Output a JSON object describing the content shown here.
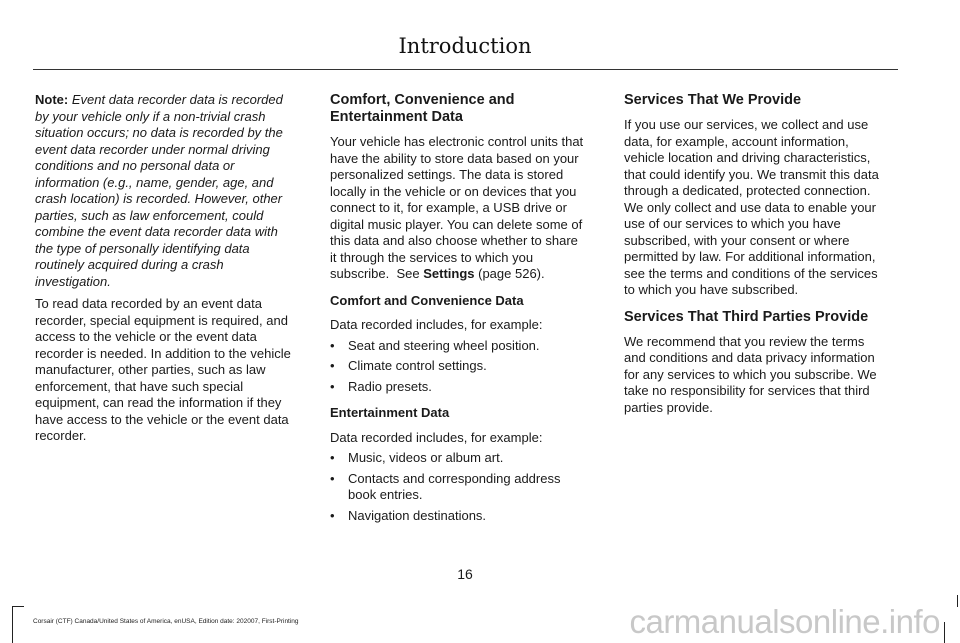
{
  "header": {
    "title": "Introduction"
  },
  "columns": [
    [
      {
        "type": "para",
        "lines": [
          [
            {
              "t": "Note: ",
              "s": "b"
            },
            {
              "t": "Event data recorder data is recorded",
              "s": "i"
            }
          ],
          [
            {
              "t": "by your vehicle only if a non-trivial crash",
              "s": "i"
            }
          ],
          [
            {
              "t": "situation occurs; no data is recorded by the",
              "s": "i"
            }
          ],
          [
            {
              "t": "event data recorder under normal driving",
              "s": "i"
            }
          ],
          [
            {
              "t": "conditions and no personal data or",
              "s": "i"
            }
          ],
          [
            {
              "t": "information (e.g., name, gender, age, and",
              "s": "i"
            }
          ],
          [
            {
              "t": "crash location) is recorded. However, other",
              "s": "i"
            }
          ],
          [
            {
              "t": "parties, such as law enforcement, could",
              "s": "i"
            }
          ],
          [
            {
              "t": "combine the event data recorder data with",
              "s": "i"
            }
          ],
          [
            {
              "t": "the type of personally identifying data",
              "s": "i"
            }
          ],
          [
            {
              "t": "routinely acquired during a crash",
              "s": "i"
            }
          ],
          [
            {
              "t": "investigation.",
              "s": "i"
            }
          ]
        ]
      },
      {
        "type": "para",
        "lines": [
          "To read data recorded by an event data",
          "recorder, special equipment is required, and",
          "access to the vehicle or the event data",
          "recorder is needed. In addition to the vehicle",
          "manufacturer, other parties, such as law",
          "enforcement, that have such special",
          "equipment, can read the information if they",
          "have access to the vehicle or the event data",
          "recorder."
        ]
      }
    ],
    [
      {
        "type": "heading",
        "lines": [
          "Comfort, Convenience and",
          "Entertainment Data"
        ]
      },
      {
        "type": "para",
        "lines": [
          "Your vehicle has electronic control units that",
          "have the ability to store data based on your",
          "personalized settings. The data is stored",
          "locally in the vehicle or on devices that you",
          "connect to it, for example, a USB drive or",
          "digital music player. You can delete some of",
          "this data and also choose whether to share",
          "it through the services to which you",
          [
            {
              "t": "subscribe.  See ",
              "s": ""
            },
            {
              "t": "Settings",
              "s": "b"
            },
            {
              "t": " (page 526).",
              "s": ""
            }
          ]
        ]
      },
      {
        "type": "subhead",
        "lines": [
          "Comfort and Convenience Data"
        ]
      },
      {
        "type": "para",
        "lines": [
          "Data recorded includes, for example:"
        ]
      },
      {
        "type": "bullet",
        "lines": [
          "Seat and steering wheel position."
        ]
      },
      {
        "type": "bullet",
        "lines": [
          "Climate control settings."
        ]
      },
      {
        "type": "bullet",
        "lines": [
          "Radio presets."
        ]
      },
      {
        "type": "subhead",
        "lines": [
          "Entertainment Data"
        ]
      },
      {
        "type": "para",
        "lines": [
          "Data recorded includes, for example:"
        ]
      },
      {
        "type": "bullet",
        "lines": [
          "Music, videos or album art."
        ]
      },
      {
        "type": "bullet",
        "lines": [
          "Contacts and corresponding address",
          "book entries."
        ]
      },
      {
        "type": "bullet",
        "lines": [
          "Navigation destinations."
        ]
      }
    ],
    [
      {
        "type": "heading",
        "lines": [
          "Services That We Provide"
        ]
      },
      {
        "type": "para",
        "lines": [
          "If you use our services, we collect and use",
          "data, for example, account information,",
          "vehicle location and driving characteristics,",
          "that could identify you. We transmit this data",
          "through a dedicated, protected connection.",
          "We only collect and use data to enable your",
          "use of our services to which you have",
          "subscribed, with your consent or where",
          "permitted by law. For additional information,",
          "see the terms and conditions of the services",
          "to which you have subscribed."
        ]
      },
      {
        "type": "heading",
        "lines": [
          "Services That Third Parties Provide"
        ]
      },
      {
        "type": "para",
        "lines": [
          "We recommend that you review the terms",
          "and conditions and data privacy information",
          "for any services to which you subscribe. We",
          "take no responsibility for services that third",
          "parties provide."
        ]
      }
    ]
  ],
  "bullet_glyph": "•",
  "page_number": "16",
  "footer": "Corsair (CTF) Canada/United States of America, enUSA, Edition date: 202007, First-Printing",
  "watermark": "carmanualsonline.info"
}
